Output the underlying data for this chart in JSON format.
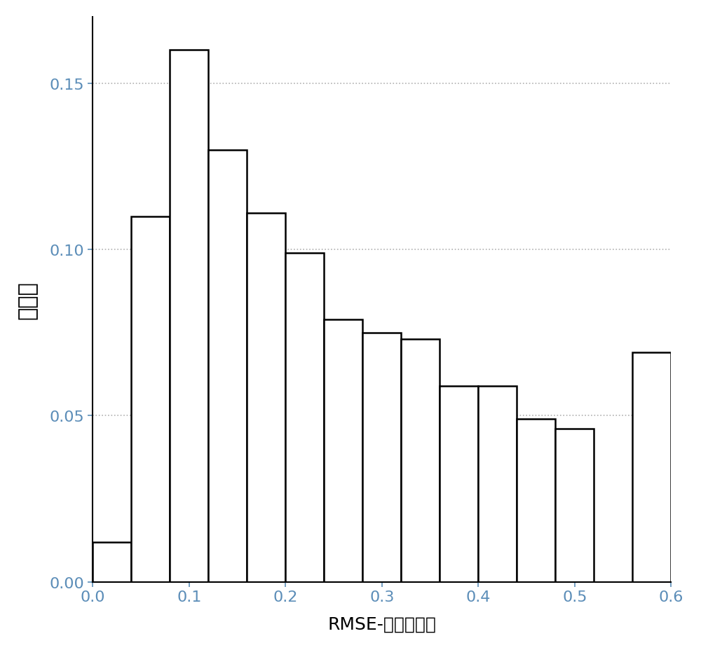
{
  "bar_heights": [
    0.012,
    0.11,
    0.16,
    0.13,
    0.111,
    0.099,
    0.079,
    0.075,
    0.073,
    0.059,
    0.059,
    0.049,
    0.046,
    0.0,
    0.069
  ],
  "bin_edges": [
    0.0,
    0.04,
    0.08,
    0.12,
    0.16,
    0.2,
    0.24,
    0.28,
    0.32,
    0.36,
    0.4,
    0.44,
    0.48,
    0.52,
    0.56,
    0.6
  ],
  "xlabel": "RMSE-负离子模式",
  "ylabel": "百分比",
  "xlim": [
    0.0,
    0.6
  ],
  "ylim": [
    0.0,
    0.17
  ],
  "yticks": [
    0.0,
    0.05,
    0.1,
    0.15
  ],
  "xticks": [
    0.0,
    0.1,
    0.2,
    0.3,
    0.4,
    0.5,
    0.6
  ],
  "bar_color": "#ffffff",
  "bar_edgecolor": "#000000",
  "grid_color": "#b0b0b0",
  "tick_color": "#5B8DB8",
  "background_color": "#ffffff",
  "ylabel_fontsize": 22,
  "xlabel_fontsize": 18,
  "tick_fontsize": 16,
  "bar_linewidth": 1.8
}
